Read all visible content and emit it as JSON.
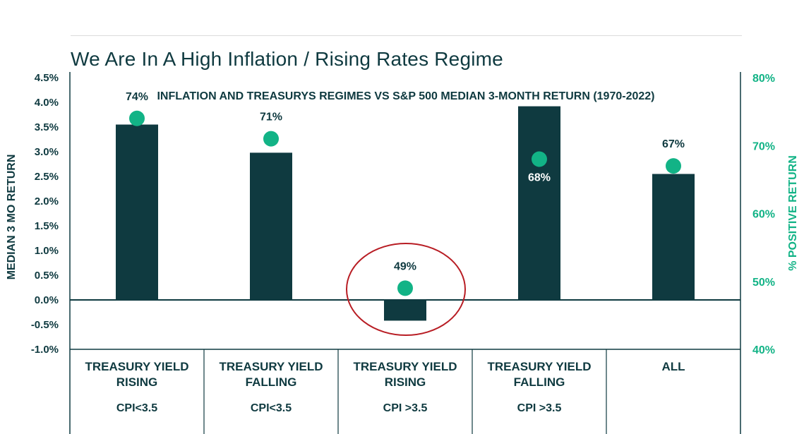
{
  "page": {
    "title": "We Are In A High Inflation / Rising Rates Regime"
  },
  "colors": {
    "bar": "#0f3a40",
    "dot": "#12b386",
    "axis_right": "#12b386",
    "highlight": "#b81d24"
  },
  "chart_data": {
    "type": "bar",
    "title": "INFLATION AND TREASURYS REGIMES VS S&P 500 MEDIAN 3-MONTH RETURN (1970-2022)",
    "ylabel": "MEDIAN 3 MO RETURN",
    "ylabel_right": "% POSITIVE RETURN",
    "ylim": [
      -1.0,
      4.5
    ],
    "ylim_right": [
      40,
      80
    ],
    "y_ticks": [
      "4.5%",
      "4.0%",
      "3.5%",
      "3.0%",
      "2.5%",
      "2.0%",
      "1.5%",
      "1.0%",
      "0.5%",
      "0.0%",
      "-0.5%",
      "-1.0%"
    ],
    "y_ticks_right": [
      "80%",
      "70%",
      "60%",
      "50%",
      "40%"
    ],
    "categories": [
      {
        "line1": "TREASURY YIELD",
        "line2": "RISING",
        "line3": "CPI<3.5"
      },
      {
        "line1": "TREASURY YIELD",
        "line2": "FALLING",
        "line3": "CPI<3.5"
      },
      {
        "line1": "TREASURY YIELD",
        "line2": "RISING",
        "line3": "CPI >3.5"
      },
      {
        "line1": "TREASURY YIELD",
        "line2": "FALLING",
        "line3": "CPI >3.5"
      },
      {
        "line1": "ALL",
        "line2": "",
        "line3": ""
      }
    ],
    "series": [
      {
        "values": [
          3.55,
          2.98,
          -0.42,
          3.92,
          2.55
        ]
      },
      {
        "values": [
          74,
          71,
          49,
          68,
          67
        ]
      }
    ],
    "dot_labels": [
      "74%",
      "71%",
      "49%",
      "68%",
      "67%"
    ],
    "highlighted_category": 2
  }
}
